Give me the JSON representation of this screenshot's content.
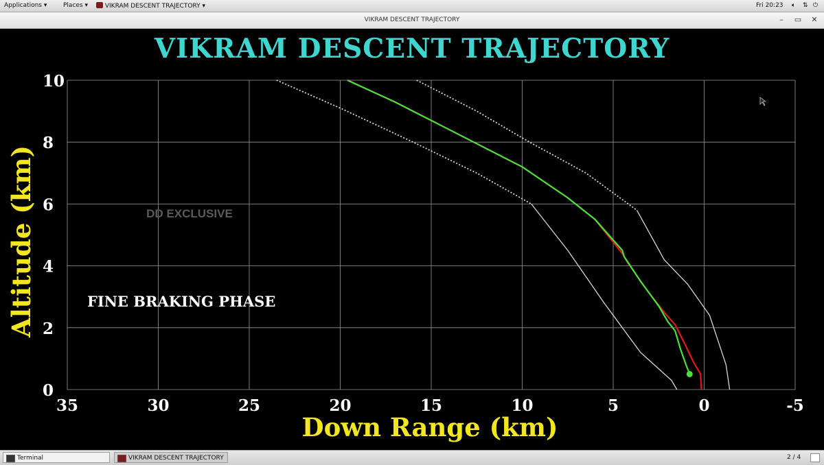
{
  "topbar": {
    "applications_label": "Applications",
    "places_label": "Places",
    "window_menu_label": "VIKRAM DESCENT TRAJECTORY",
    "clock": "Fri 20:23"
  },
  "window": {
    "title": "VIKRAM DESCENT TRAJECTORY"
  },
  "taskbar": {
    "items": [
      {
        "label": "Terminal"
      },
      {
        "label": "VIKRAM DESCENT TRAJECTORY"
      }
    ],
    "pager": "2 / 4"
  },
  "annotations": {
    "watermark": "DD EXCLUSIVE",
    "phase": "FINE BRAKING PHASE"
  },
  "colors": {
    "title": "#3fd6d0",
    "axis_labels": "#f2e622",
    "planned_path": "#e01a1a",
    "actual_path": "#48e03a",
    "bounds": "#d8d8d8",
    "grid": "#9a9a9a"
  },
  "chart_data": {
    "type": "line",
    "title": "VIKRAM DESCENT TRAJECTORY",
    "xlabel": "Down Range (km)",
    "ylabel": "Altitude (km)",
    "xlim": [
      35,
      -5
    ],
    "ylim": [
      0,
      10
    ],
    "x_ticks": [
      35,
      30,
      25,
      20,
      15,
      10,
      5,
      0,
      -5
    ],
    "y_ticks": [
      0,
      2,
      4,
      6,
      8,
      10
    ],
    "x_tick_labels": [
      "35",
      "30",
      "25",
      "20",
      "15",
      "10",
      "5",
      "0",
      "-5"
    ],
    "y_tick_labels": [
      "0",
      "2",
      "4",
      "6",
      "8",
      "10"
    ],
    "grid": true,
    "series": [
      {
        "name": "",
        "color": "#e01a1a",
        "style": "solid",
        "x": [
          19.6,
          17,
          15,
          13,
          10,
          7.5,
          6,
          4.5,
          4.2,
          3.0,
          2.2,
          1.6,
          1.0,
          0.6,
          0.2,
          0.15
        ],
        "y": [
          10,
          9.3,
          8.7,
          8.1,
          7.2,
          6.2,
          5.5,
          4.4,
          4.1,
          3.1,
          2.5,
          2.1,
          1.4,
          0.9,
          0.5,
          0
        ]
      },
      {
        "name": "",
        "color": "#48e03a",
        "style": "solid",
        "x": [
          19.6,
          17,
          15,
          13,
          10,
          7.5,
          6,
          4.5,
          4.4,
          3.5,
          2.5,
          2.0,
          1.6,
          1.3,
          1.0,
          0.8
        ],
        "y": [
          10,
          9.3,
          8.7,
          8.1,
          7.2,
          6.2,
          5.5,
          4.5,
          4.3,
          3.5,
          2.7,
          2.2,
          1.9,
          1.3,
          0.8,
          0.5
        ]
      },
      {
        "name": "",
        "color": "#d8d8d8",
        "style": "dotted",
        "x": [
          23.5,
          20,
          16,
          12.5,
          9.5
        ],
        "y": [
          10,
          9.1,
          8.0,
          7.0,
          6.0
        ]
      },
      {
        "name": "",
        "color": "#d8d8d8",
        "style": "solid",
        "x": [
          9.5,
          7.5,
          5.5,
          3.5,
          1.8,
          1.5
        ],
        "y": [
          6.0,
          4.5,
          2.8,
          1.2,
          0.3,
          0
        ]
      },
      {
        "name": "",
        "color": "#d8d8d8",
        "style": "dotted",
        "x": [
          15.8,
          12.5,
          9.6,
          6.5,
          3.7
        ],
        "y": [
          10,
          9.0,
          8.0,
          7.0,
          5.8
        ]
      },
      {
        "name": "",
        "color": "#d8d8d8",
        "style": "solid",
        "x": [
          3.7,
          2.2,
          0.9,
          -0.3,
          -1.2,
          -1.4
        ],
        "y": [
          5.8,
          4.2,
          3.4,
          2.4,
          0.8,
          0
        ]
      }
    ],
    "marker": {
      "x": 0.8,
      "y": 0.5,
      "color": "#48e03a"
    }
  }
}
